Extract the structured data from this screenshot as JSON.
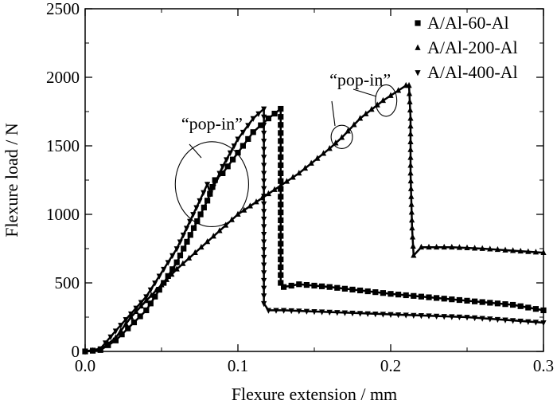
{
  "chart_data": {
    "type": "line",
    "xlabel": "Flexure extension / mm",
    "ylabel": "Flexure load / N",
    "xlim": [
      0.0,
      0.3
    ],
    "ylim": [
      0,
      2500
    ],
    "xticks": [
      "0.0",
      "0.1",
      "0.2",
      "0.3"
    ],
    "yticks": [
      "0",
      "500",
      "1000",
      "1500",
      "2000",
      "2500"
    ],
    "grid": false,
    "legend_position": "top-right",
    "series": [
      {
        "name": "A/Al-60-Al",
        "marker": "square",
        "points": [
          [
            0.0,
            0
          ],
          [
            0.01,
            10
          ],
          [
            0.02,
            80
          ],
          [
            0.04,
            300
          ],
          [
            0.06,
            650
          ],
          [
            0.08,
            1100
          ],
          [
            0.085,
            1250
          ],
          [
            0.09,
            1300
          ],
          [
            0.1,
            1450
          ],
          [
            0.11,
            1600
          ],
          [
            0.12,
            1700
          ],
          [
            0.128,
            1770
          ],
          [
            0.128,
            1300
          ],
          [
            0.128,
            900
          ],
          [
            0.128,
            500
          ],
          [
            0.13,
            470
          ],
          [
            0.14,
            490
          ],
          [
            0.16,
            470
          ],
          [
            0.2,
            420
          ],
          [
            0.25,
            370
          ],
          [
            0.28,
            340
          ],
          [
            0.3,
            300
          ]
        ]
      },
      {
        "name": "A/Al-200-Al",
        "marker": "triangle-up",
        "points": [
          [
            0.0,
            0
          ],
          [
            0.01,
            10
          ],
          [
            0.02,
            100
          ],
          [
            0.03,
            250
          ],
          [
            0.04,
            370
          ],
          [
            0.06,
            600
          ],
          [
            0.08,
            800
          ],
          [
            0.1,
            1000
          ],
          [
            0.12,
            1150
          ],
          [
            0.14,
            1300
          ],
          [
            0.16,
            1480
          ],
          [
            0.168,
            1560
          ],
          [
            0.18,
            1700
          ],
          [
            0.195,
            1830
          ],
          [
            0.21,
            1940
          ],
          [
            0.212,
            1940
          ],
          [
            0.213,
            1700
          ],
          [
            0.213,
            1300
          ],
          [
            0.214,
            900
          ],
          [
            0.215,
            700
          ],
          [
            0.22,
            760
          ],
          [
            0.24,
            760
          ],
          [
            0.26,
            750
          ],
          [
            0.3,
            720
          ]
        ]
      },
      {
        "name": "A/Al-400-Al",
        "marker": "triangle-down",
        "points": [
          [
            0.0,
            0
          ],
          [
            0.01,
            20
          ],
          [
            0.02,
            150
          ],
          [
            0.04,
            400
          ],
          [
            0.06,
            750
          ],
          [
            0.075,
            1100
          ],
          [
            0.08,
            1220
          ],
          [
            0.082,
            1150
          ],
          [
            0.09,
            1350
          ],
          [
            0.1,
            1550
          ],
          [
            0.11,
            1700
          ],
          [
            0.117,
            1770
          ],
          [
            0.117,
            1300
          ],
          [
            0.117,
            800
          ],
          [
            0.117,
            350
          ],
          [
            0.12,
            300
          ],
          [
            0.13,
            300
          ],
          [
            0.2,
            270
          ],
          [
            0.25,
            250
          ],
          [
            0.3,
            210
          ]
        ]
      }
    ],
    "annotations": [
      {
        "text": "“pop-in”",
        "x": 0.083,
        "y": 1620
      },
      {
        "text": "“pop-in”",
        "x": 0.18,
        "y": 1940
      }
    ],
    "circles": [
      {
        "cx": 0.083,
        "cy": 1220,
        "rx": 0.024,
        "ry": 310
      },
      {
        "cx": 0.168,
        "cy": 1565,
        "rx": 0.007,
        "ry": 85
      },
      {
        "cx": 0.197,
        "cy": 1830,
        "rx": 0.007,
        "ry": 115
      }
    ]
  }
}
